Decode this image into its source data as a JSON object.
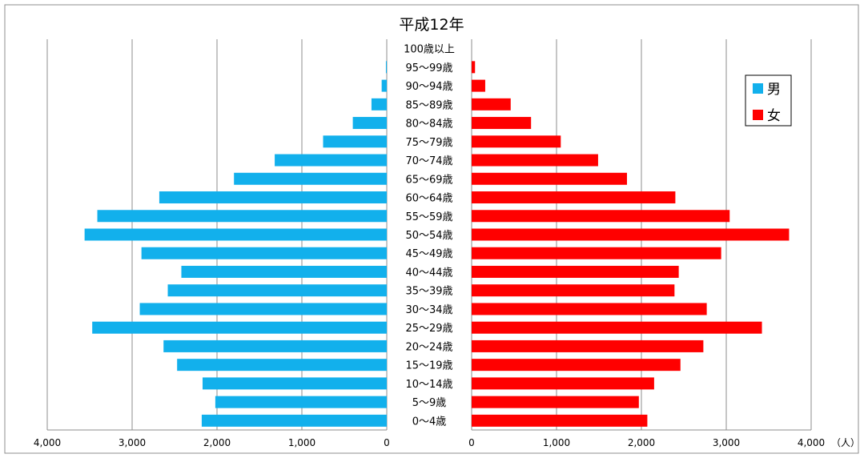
{
  "chart_data": {
    "type": "bar",
    "orientation": "horizontal",
    "title": "平成12年",
    "unit": "（人）",
    "categories": [
      "0〜4歳",
      "5〜9歳",
      "10〜14歳",
      "15〜19歳",
      "20〜24歳",
      "25〜29歳",
      "30〜34歳",
      "35〜39歳",
      "40〜44歳",
      "45〜49歳",
      "50〜54歳",
      "55〜59歳",
      "60〜64歳",
      "65〜69歳",
      "70〜74歳",
      "75〜79歳",
      "80〜84歳",
      "85〜89歳",
      "90〜94歳",
      "95〜99歳",
      "100歳以上"
    ],
    "series": [
      {
        "name": "男",
        "color": "#12b0ec",
        "values": [
          2180,
          2020,
          2170,
          2470,
          2630,
          3470,
          2910,
          2580,
          2420,
          2890,
          3560,
          3410,
          2680,
          1800,
          1320,
          750,
          400,
          180,
          60,
          10,
          0
        ]
      },
      {
        "name": "女",
        "color": "#ff0000",
        "values": [
          2070,
          1970,
          2150,
          2460,
          2730,
          3420,
          2770,
          2390,
          2440,
          2940,
          3740,
          3040,
          2400,
          1830,
          1490,
          1050,
          700,
          460,
          160,
          40,
          0
        ]
      }
    ],
    "xlim": [
      0,
      4000
    ],
    "tick_labels_left": [
      "4,000",
      "3,000",
      "2,000",
      "1,000",
      "0"
    ],
    "tick_labels_right": [
      "0",
      "1,000",
      "2,000",
      "3,000",
      "4,000"
    ],
    "grid": true,
    "legend": "top-right"
  }
}
